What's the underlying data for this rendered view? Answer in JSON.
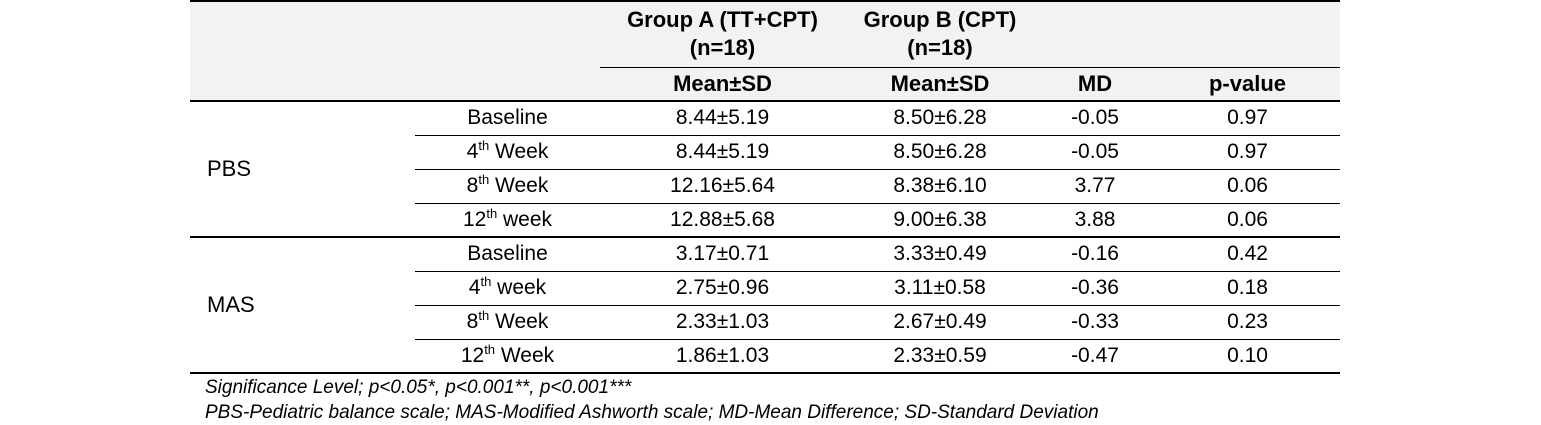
{
  "header": {
    "groups": [
      {
        "name": "Group A (TT+CPT)",
        "n": "(n=18)"
      },
      {
        "name": "Group B (CPT)",
        "n": "(n=18)"
      }
    ],
    "subheaders": {
      "mean_sd_a": "Mean±SD",
      "mean_sd_b": "Mean±SD",
      "md": "MD",
      "p": "p-value"
    }
  },
  "sections": [
    {
      "label": "PBS",
      "rows": [
        {
          "time": {
            "pre": "Baseline",
            "sup": "",
            "post": ""
          },
          "mean_a": "8.44±5.19",
          "mean_b": "8.50±6.28",
          "md": "-0.05",
          "p": "0.97"
        },
        {
          "time": {
            "pre": "4",
            "sup": "th",
            "post": " Week"
          },
          "mean_a": "8.44±5.19",
          "mean_b": "8.50±6.28",
          "md": "-0.05",
          "p": "0.97"
        },
        {
          "time": {
            "pre": "8",
            "sup": "th",
            "post": " Week"
          },
          "mean_a": "12.16±5.64",
          "mean_b": "8.38±6.10",
          "md": "3.77",
          "p": "0.06"
        },
        {
          "time": {
            "pre": "12",
            "sup": "th",
            "post": " week"
          },
          "mean_a": "12.88±5.68",
          "mean_b": "9.00±6.38",
          "md": "3.88",
          "p": "0.06"
        }
      ]
    },
    {
      "label": "MAS",
      "rows": [
        {
          "time": {
            "pre": "Baseline",
            "sup": "",
            "post": ""
          },
          "mean_a": "3.17±0.71",
          "mean_b": "3.33±0.49",
          "md": "-0.16",
          "p": "0.42"
        },
        {
          "time": {
            "pre": "4",
            "sup": "th",
            "post": " week"
          },
          "mean_a": "2.75±0.96",
          "mean_b": "3.11±0.58",
          "md": "-0.36",
          "p": "0.18"
        },
        {
          "time": {
            "pre": "8",
            "sup": "th",
            "post": " Week"
          },
          "mean_a": "2.33±1.03",
          "mean_b": "2.67±0.49",
          "md": "-0.33",
          "p": "0.23"
        },
        {
          "time": {
            "pre": "12",
            "sup": "th",
            "post": " Week"
          },
          "mean_a": "1.86±1.03",
          "mean_b": "2.33±0.59",
          "md": "-0.47",
          "p": "0.10"
        }
      ]
    }
  ],
  "notes": {
    "line1": "Significance Level; p<0.05*, p<0.001**, p<0.001***",
    "line2": "PBS-Pediatric balance scale; MAS-Modified Ashworth scale; MD-Mean Difference; SD-Standard Deviation"
  },
  "colors": {
    "header_bg": "#f2f2f2",
    "border": "#000000",
    "text": "#000000",
    "page_bg": "#ffffff"
  }
}
